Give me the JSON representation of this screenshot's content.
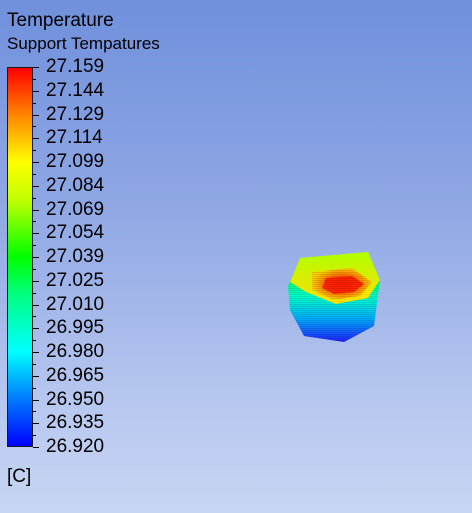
{
  "legend": {
    "title": "Temperature",
    "subtitle": "Support Tempatures",
    "unit": "[C]",
    "ticks": [
      "27.159",
      "27.144",
      "27.129",
      "27.114",
      "27.099",
      "27.084",
      "27.069",
      "27.054",
      "27.039",
      "27.025",
      "27.010",
      "26.995",
      "26.980",
      "26.965",
      "26.950",
      "26.935",
      "26.920"
    ]
  },
  "colors": {
    "max": "#ff0000",
    "mid": "#00ff00",
    "min": "#0000ff",
    "background_top": "#7090dc",
    "background_bottom": "#c8d5f3"
  }
}
